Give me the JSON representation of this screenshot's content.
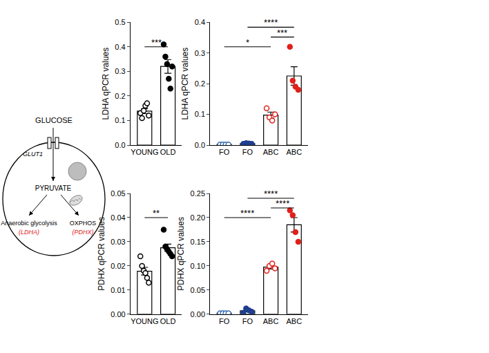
{
  "diagram": {
    "input": "GLUCOSE",
    "transporter": "GLUT1",
    "intermediate": "PYRUVATE",
    "left_pathway": "Anaerobic glycolysis",
    "left_gene": "(LDHA)",
    "right_pathway": "OXPHOS",
    "right_gene": "(PDHX)",
    "gene_color": "#e0201b"
  },
  "chart_data": [
    {
      "type": "bar",
      "categories": [
        "YOUNG",
        "OLD"
      ],
      "y_label": "LDHA qPCR values",
      "values": [
        0.138,
        0.32
      ],
      "errors": [
        0.01,
        0.028
      ],
      "color": "#ffffff",
      "points": [
        [
          0.13,
          0.11,
          0.14,
          0.16,
          0.17,
          0.12
        ],
        [
          0.41,
          0.36,
          0.33,
          0.27,
          0.23,
          0.32
        ]
      ],
      "colors": [
        "#000000",
        "#000000"
      ],
      "markers": [
        "open",
        "filled"
      ],
      "ylim": [
        0,
        0.5
      ],
      "yticks": [
        {
          "value": 0,
          "label": "0.0"
        },
        {
          "value": 0.1,
          "label": "0.1"
        },
        {
          "value": 0.2,
          "label": "0.2"
        },
        {
          "value": 0.3,
          "label": "0.3"
        },
        {
          "value": 0.4,
          "label": "0.4"
        },
        {
          "value": 0.5,
          "label": "0.5"
        }
      ],
      "grid": false,
      "brackets": [
        {
          "from": 0,
          "to": 1,
          "text": "***"
        }
      ]
    },
    {
      "type": "bar",
      "categories": [
        "FO",
        "FO",
        "ABC",
        "ABC"
      ],
      "y_label": "LDHA qPCR values",
      "values": [
        0.002,
        0.005,
        0.0975,
        0.225
      ],
      "errors": [
        0.0005,
        0.001,
        0.01,
        0.03
      ],
      "color": "#ffffff",
      "points": [
        [
          0.002,
          0.002,
          0.002,
          0.002
        ],
        [
          0.004,
          0.006,
          0.005,
          0.004
        ],
        [
          0.12,
          0.09,
          0.08,
          0.1
        ],
        [
          0.32,
          0.21,
          0.19,
          0.18
        ]
      ],
      "colors": [
        "#3a6fb5",
        "#1f3f8f",
        "#e0201b",
        "#e0201b"
      ],
      "markers": [
        "open",
        "filled",
        "open",
        "filled"
      ],
      "ylim": [
        0,
        0.4
      ],
      "yticks": [
        {
          "value": 0,
          "label": "0.0"
        },
        {
          "value": 0.1,
          "label": "0.1"
        },
        {
          "value": 0.2,
          "label": "0.2"
        },
        {
          "value": 0.3,
          "label": "0.3"
        },
        {
          "value": 0.4,
          "label": "0.4"
        }
      ],
      "grid": false,
      "brackets": [
        {
          "from": 0,
          "to": 2,
          "text": "*"
        },
        {
          "from": 2,
          "to": 3,
          "text": "***"
        },
        {
          "from": 1,
          "to": 3,
          "text": "****"
        }
      ]
    },
    {
      "type": "bar",
      "categories": [
        "YOUNG",
        "OLD"
      ],
      "y_label": "PDHX qPCR values",
      "values": [
        0.0178,
        0.0275
      ],
      "errors": [
        0.0016,
        0.0015
      ],
      "color": "#ffffff",
      "points": [
        [
          0.024,
          0.02,
          0.018,
          0.017,
          0.015,
          0.013
        ],
        [
          0.035,
          0.028,
          0.027,
          0.026,
          0.025,
          0.024
        ]
      ],
      "colors": [
        "#000000",
        "#000000"
      ],
      "markers": [
        "open",
        "filled"
      ],
      "ylim": [
        0,
        0.05
      ],
      "yticks": [
        {
          "value": 0,
          "label": "0.00"
        },
        {
          "value": 0.01,
          "label": "0.01"
        },
        {
          "value": 0.02,
          "label": "0.02"
        },
        {
          "value": 0.03,
          "label": "0.03"
        },
        {
          "value": 0.04,
          "label": "0.04"
        },
        {
          "value": 0.05,
          "label": "0.05"
        }
      ],
      "grid": false,
      "brackets": [
        {
          "from": 0,
          "to": 1,
          "text": "**"
        }
      ]
    },
    {
      "type": "bar",
      "categories": [
        "FO",
        "FO",
        "ABC",
        "ABC"
      ],
      "y_label": "PDHX qPCR values",
      "values": [
        0.002,
        0.007,
        0.0975,
        0.185
      ],
      "errors": [
        0.0005,
        0.002,
        0.004,
        0.015
      ],
      "color": "#ffffff",
      "points": [
        [
          0.002,
          0.002,
          0.002,
          0.002
        ],
        [
          0.003,
          0.012,
          0.008,
          0.005
        ],
        [
          0.09,
          0.1,
          0.105,
          0.095
        ],
        [
          0.215,
          0.205,
          0.17,
          0.15
        ]
      ],
      "colors": [
        "#3a6fb5",
        "#1f3f8f",
        "#e0201b",
        "#e0201b"
      ],
      "markers": [
        "open",
        "filled",
        "open",
        "filled"
      ],
      "ylim": [
        0,
        0.25
      ],
      "yticks": [
        {
          "value": 0,
          "label": "0.00"
        },
        {
          "value": 0.05,
          "label": "0.05"
        },
        {
          "value": 0.1,
          "label": "0.10"
        },
        {
          "value": 0.15,
          "label": "0.15"
        },
        {
          "value": 0.2,
          "label": "0.20"
        },
        {
          "value": 0.25,
          "label": "0.25"
        }
      ],
      "grid": false,
      "brackets": [
        {
          "from": 0,
          "to": 2,
          "text": "****"
        },
        {
          "from": 2,
          "to": 3,
          "text": "****"
        },
        {
          "from": 1,
          "to": 3,
          "text": "****"
        }
      ]
    }
  ]
}
